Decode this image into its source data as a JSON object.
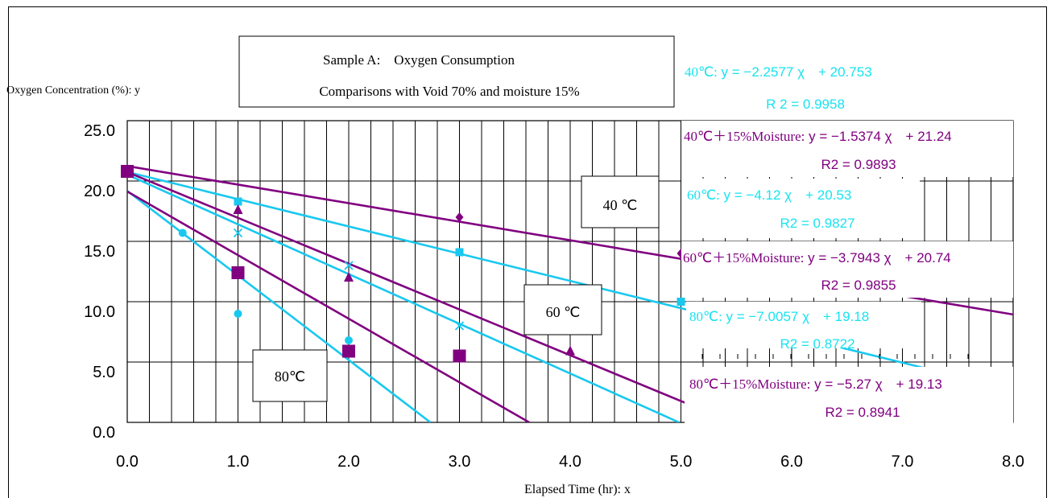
{
  "chart_data": {
    "type": "scatter",
    "title": "Sample A:　Oxygen Consumption",
    "subtitle": "Comparisons with Void 70% and moisture 15%",
    "ylabel": "Oxygen Concentration (%): y",
    "xlabel": "Elapsed Time (hr): x",
    "xlim": [
      0,
      8
    ],
    "ylim": [
      0,
      25
    ],
    "x_ticks": [
      "0.0",
      "1.0",
      "2.0",
      "3.0",
      "4.0",
      "5.0",
      "6.0",
      "7.0",
      "8.0"
    ],
    "y_ticks": [
      "0.0",
      "5.0",
      "10.0",
      "15.0",
      "20.0",
      "25.0"
    ],
    "grid": true,
    "colors": {
      "cyan": "#19c8ef",
      "purple": "#800080"
    },
    "labels": {
      "t40": "40 ℃",
      "t60": "60 ℃",
      "t80": "80℃"
    },
    "series": [
      {
        "marker": "square",
        "color": "#19c8ef",
        "points": [
          [
            0,
            20.8
          ],
          [
            1,
            18.3
          ],
          [
            3,
            14.1
          ],
          [
            5,
            10.0
          ]
        ],
        "fit": {
          "slope": -2.2577,
          "intercept": 20.753
        }
      },
      {
        "marker": "diamond",
        "color": "#800080",
        "points": [
          [
            0,
            20.8
          ],
          [
            3,
            17.0
          ],
          [
            5,
            14.0
          ]
        ],
        "fit": {
          "slope": -1.5374,
          "intercept": 21.24
        }
      },
      {
        "marker": "cross",
        "color": "#19c8ef",
        "points": [
          [
            0,
            20.8
          ],
          [
            1,
            15.7
          ],
          [
            2,
            13.0
          ],
          [
            3,
            8.0
          ]
        ],
        "fit": {
          "slope": -4.12,
          "intercept": 20.53
        }
      },
      {
        "marker": "triangle",
        "color": "#800080",
        "points": [
          [
            0,
            20.8
          ],
          [
            1,
            17.6
          ],
          [
            2,
            12.0
          ],
          [
            4,
            5.9
          ]
        ],
        "fit": {
          "slope": -3.7943,
          "intercept": 20.74
        }
      },
      {
        "marker": "circle",
        "color": "#19c8ef",
        "points": [
          [
            0,
            20.8
          ],
          [
            0.5,
            15.7
          ],
          [
            1,
            9.0
          ],
          [
            2,
            6.8
          ]
        ],
        "fit": {
          "slope": -7.0057,
          "intercept": 19.18
        }
      },
      {
        "marker": "bigsquare",
        "color": "#800080",
        "points": [
          [
            0,
            20.8
          ],
          [
            1,
            12.4
          ],
          [
            2,
            5.9
          ],
          [
            3,
            5.5
          ]
        ],
        "fit": {
          "slope": -5.27,
          "intercept": 19.13
        }
      }
    ],
    "equations": [
      {
        "label": "40℃:",
        "eq": "y = −2.2577 χ　+ 20.753",
        "r2_label": "R 2",
        "r2": "= 0.9958",
        "color": "cyan"
      },
      {
        "label": "40℃＋15%Moisture:",
        "eq": "y = −1.5374 χ　+ 21.24",
        "r2_label": "R2",
        "r2": "= 0.9893",
        "color": "purple"
      },
      {
        "label": "60℃:",
        "eq": "y = −4.12 χ　+ 20.53",
        "r2_label": "R2",
        "r2": "= 0.9827",
        "color": "cyan"
      },
      {
        "label": "60℃＋15%Moisture:",
        "eq": "y = −3.7943 χ　+ 20.74",
        "r2_label": "R2",
        "r2": "= 0.9855",
        "color": "purple"
      },
      {
        "label": "80℃:",
        "eq": "y = −7.0057 χ　+ 19.18",
        "r2_label": "R2",
        "r2": "= 0.8722",
        "color": "cyan"
      },
      {
        "label": "80℃＋15%Moisture:",
        "eq": "y = −5.27 χ　+ 19.13",
        "r2_label": "R2",
        "r2": "= 0.8941",
        "color": "purple"
      }
    ]
  }
}
